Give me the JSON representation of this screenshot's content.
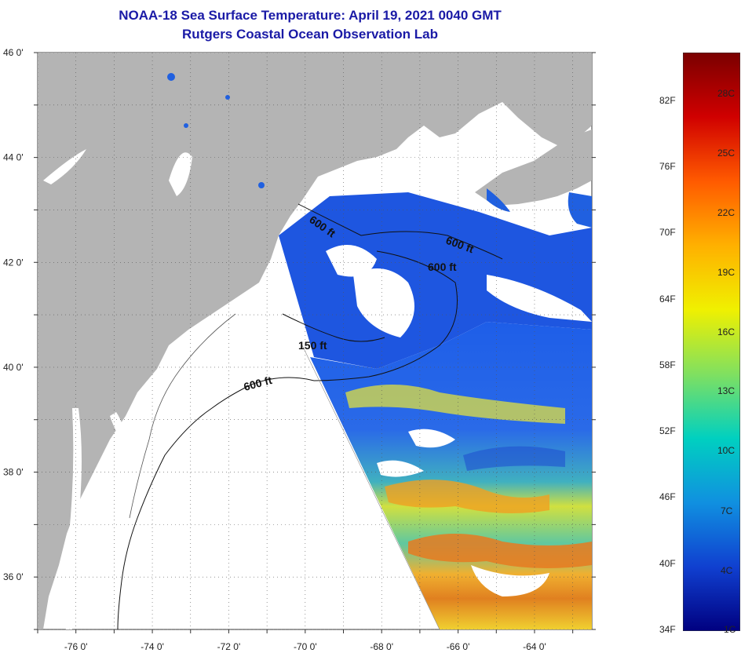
{
  "title": {
    "line1": "NOAA-18 Sea Surface Temperature:  April 19, 2021 0040 GMT",
    "line2": "Rutgers Coastal Ocean Observation Lab"
  },
  "map": {
    "lon_range": [
      -77,
      -62.5
    ],
    "lat_range": [
      35,
      46
    ],
    "lat_ticks": [
      {
        "value": 46,
        "label": "46 0'"
      },
      {
        "value": 44,
        "label": "44 0'"
      },
      {
        "value": 42,
        "label": "42 0'"
      },
      {
        "value": 40,
        "label": "40 0'"
      },
      {
        "value": 38,
        "label": "38 0'"
      },
      {
        "value": 36,
        "label": "36 0'"
      }
    ],
    "lon_ticks": [
      {
        "value": -76,
        "label": "-76 0'"
      },
      {
        "value": -74,
        "label": "-74 0'"
      },
      {
        "value": -72,
        "label": "-72 0'"
      },
      {
        "value": -70,
        "label": "-70 0'"
      },
      {
        "value": -68,
        "label": "-68 0'"
      },
      {
        "value": -66,
        "label": "-66 0'"
      },
      {
        "value": -64,
        "label": "-64 0'"
      }
    ],
    "contour_labels": [
      {
        "id": "c1",
        "text": "600 ft"
      },
      {
        "id": "c2",
        "text": "600 ft"
      },
      {
        "id": "c3",
        "text": "600 ft"
      },
      {
        "id": "c4",
        "text": "150 ft"
      },
      {
        "id": "c5",
        "text": "600 ft"
      }
    ],
    "colors": {
      "land": "#b4b4b4",
      "cloud": "#ffffff",
      "cold": "#2060e0",
      "warm": "#f0c020"
    }
  },
  "colorbar": {
    "fahrenheit": [
      "82F",
      "76F",
      "70F",
      "64F",
      "58F",
      "52F",
      "46F",
      "40F",
      "34F"
    ],
    "celsius": [
      "28C",
      "25C",
      "22C",
      "19C",
      "16C",
      "13C",
      "10C",
      "7C",
      "4C",
      "1C"
    ],
    "colors": [
      "#7a0000",
      "#d00000",
      "#ff5a00",
      "#ffb000",
      "#f0f000",
      "#80e060",
      "#00d0c0",
      "#1090e0",
      "#1040d0",
      "#000080"
    ]
  }
}
